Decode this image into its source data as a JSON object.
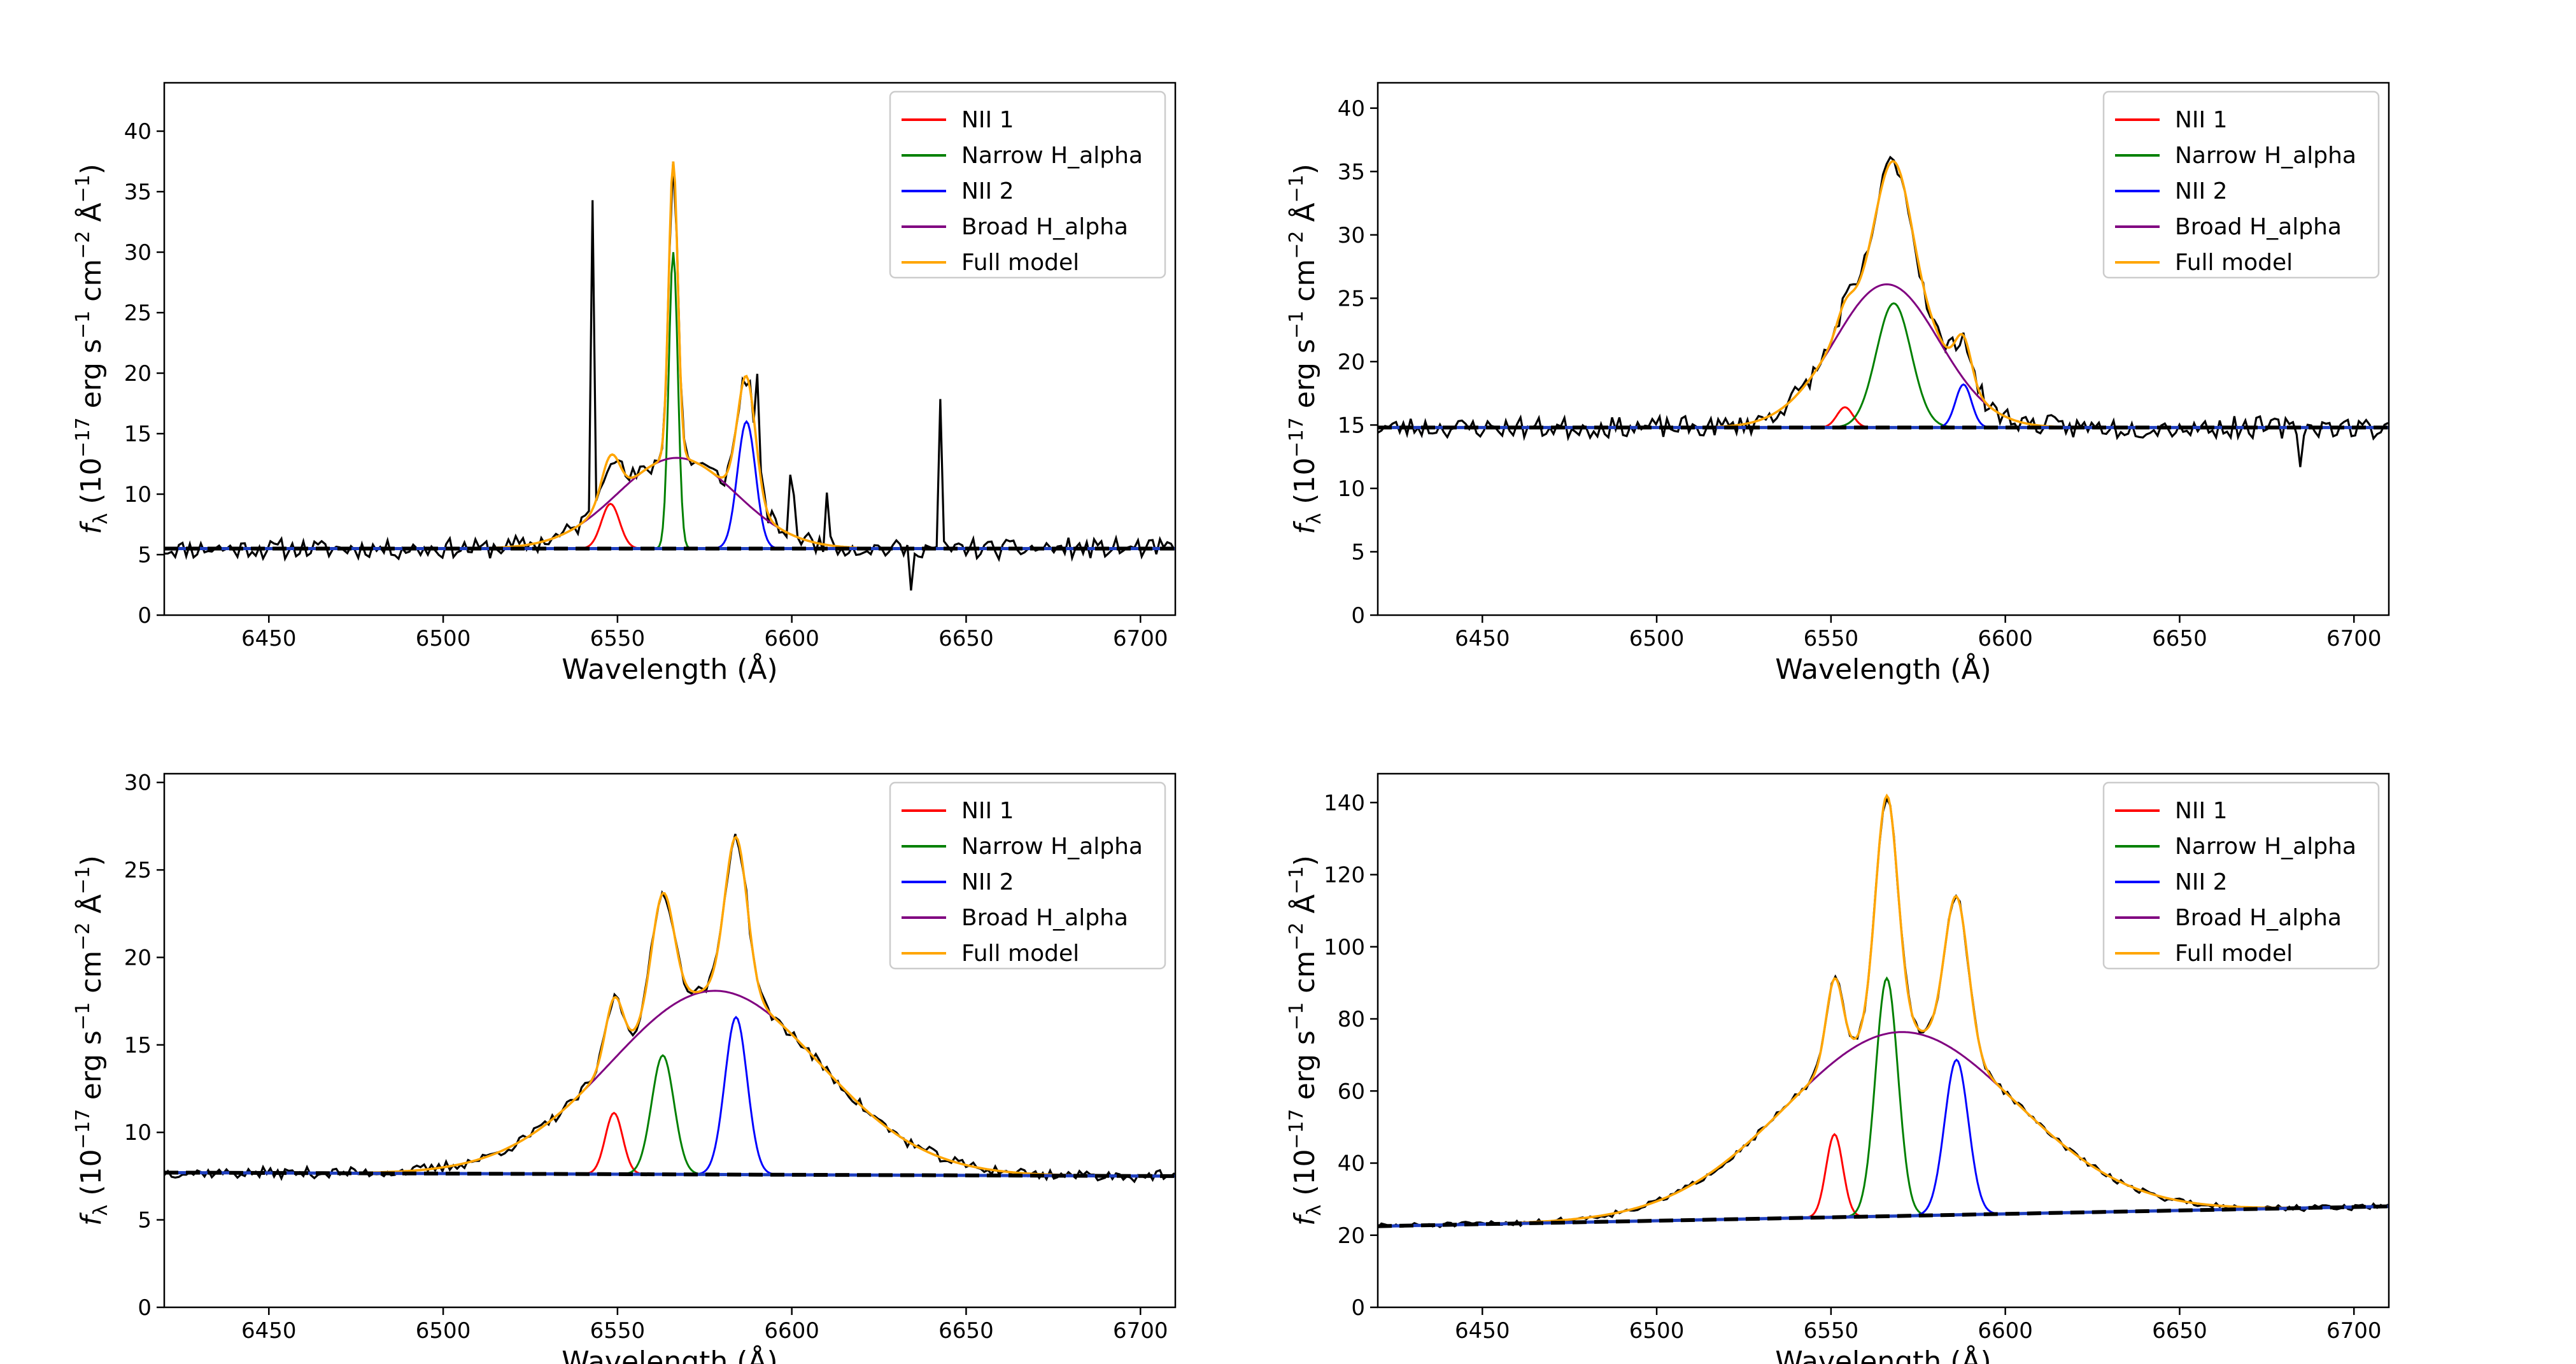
{
  "figure": {
    "layout": "2x2 grid of spectral line fits"
  },
  "legend_entries": [
    {
      "label": "NII 1",
      "color": "#ff0000"
    },
    {
      "label": "Narrow H_alpha",
      "color": "#008000"
    },
    {
      "label": "NII 2",
      "color": "#0000ff"
    },
    {
      "label": "Broad H_alpha",
      "color": "#800080"
    },
    {
      "label": "Full model",
      "color": "#ffa500"
    }
  ],
  "colors": {
    "data": "#000000",
    "continuum": "#000000",
    "continuum_dash": "#1f3fbf"
  },
  "chart_data": [
    {
      "type": "line",
      "panel": "top-left",
      "xlabel": "Wavelength (Å)",
      "ylabel": "f_λ (10^-17 erg s^-1 cm^-2 Å^-1)",
      "xlim": [
        6420,
        6710
      ],
      "ylim": [
        0,
        44
      ],
      "xticks": [
        6450,
        6500,
        6550,
        6600,
        6650,
        6700
      ],
      "yticks": [
        0,
        5,
        10,
        15,
        20,
        25,
        30,
        35,
        40
      ],
      "legend": "top-right",
      "continuum": [
        5.5,
        5.5
      ],
      "noise": 0.8,
      "seed": 11,
      "spikes": [
        [
          6543,
          26
        ],
        [
          6590,
          6
        ],
        [
          6634,
          -4
        ],
        [
          6643,
          12
        ],
        [
          6600,
          4
        ],
        [
          6610,
          5
        ]
      ],
      "components": [
        {
          "name": "NII 1",
          "center": 6548,
          "amplitude": 3.7,
          "sigma": 2.6
        },
        {
          "name": "Narrow H_alpha",
          "center": 6566,
          "amplitude": 24.5,
          "sigma": 1.3
        },
        {
          "name": "NII 2",
          "center": 6587,
          "amplitude": 10.5,
          "sigma": 2.6
        },
        {
          "name": "Broad H_alpha",
          "center": 6567,
          "amplitude": 7.5,
          "sigma": 17
        }
      ]
    },
    {
      "type": "line",
      "panel": "top-right",
      "xlabel": "Wavelength (Å)",
      "ylabel": "f_λ (10^-17 erg s^-1 cm^-2 Å^-1)",
      "xlim": [
        6420,
        6710
      ],
      "ylim": [
        0,
        42
      ],
      "xticks": [
        6450,
        6500,
        6550,
        6600,
        6650,
        6700
      ],
      "yticks": [
        0,
        5,
        10,
        15,
        20,
        25,
        30,
        35,
        40
      ],
      "legend": "top-right",
      "continuum": [
        14.8,
        14.8
      ],
      "noise": 0.8,
      "seed": 23,
      "spikes": [
        [
          6685,
          -3
        ]
      ],
      "components": [
        {
          "name": "NII 1",
          "center": 6554,
          "amplitude": 1.6,
          "sigma": 2.3
        },
        {
          "name": "Narrow H_alpha",
          "center": 6568,
          "amplitude": 9.8,
          "sigma": 5
        },
        {
          "name": "NII 2",
          "center": 6588,
          "amplitude": 3.4,
          "sigma": 2.3
        },
        {
          "name": "Broad H_alpha",
          "center": 6566,
          "amplitude": 11.3,
          "sigma": 15
        }
      ]
    },
    {
      "type": "line",
      "panel": "bottom-left",
      "xlabel": "Wavelength (Å)",
      "ylabel": "f_λ (10^-17 erg s^-1 cm^-2 Å^-1)",
      "xlim": [
        6420,
        6710
      ],
      "ylim": [
        0,
        30.5
      ],
      "xticks": [
        6450,
        6500,
        6550,
        6600,
        6650,
        6700
      ],
      "yticks": [
        0,
        5,
        10,
        15,
        20,
        25,
        30
      ],
      "legend": "top-right",
      "continuum": [
        7.7,
        7.5
      ],
      "noise": 0.3,
      "seed": 37,
      "spikes": [],
      "components": [
        {
          "name": "NII 1",
          "center": 6549,
          "amplitude": 3.5,
          "sigma": 2.5
        },
        {
          "name": "Narrow H_alpha",
          "center": 6563,
          "amplitude": 6.8,
          "sigma": 3.2
        },
        {
          "name": "NII 2",
          "center": 6584,
          "amplitude": 9.0,
          "sigma": 3.2
        },
        {
          "name": "Broad H_alpha",
          "center": 6578,
          "amplitude": 10.5,
          "sigma": 30
        }
      ]
    },
    {
      "type": "line",
      "panel": "bottom-right",
      "xlabel": "Wavelength (Å)",
      "ylabel": "f_λ (10^-17 erg s^-1 cm^-2 Å^-1)",
      "xlim": [
        6420,
        6710
      ],
      "ylim": [
        0,
        148
      ],
      "xticks": [
        6450,
        6500,
        6550,
        6600,
        6650,
        6700
      ],
      "yticks": [
        0,
        20,
        40,
        60,
        80,
        100,
        120,
        140
      ],
      "legend": "top-right",
      "continuum": [
        22.5,
        28
      ],
      "noise": 0.8,
      "seed": 51,
      "spikes": [],
      "components": [
        {
          "name": "NII 1",
          "center": 6551,
          "amplitude": 23,
          "sigma": 2.4
        },
        {
          "name": "Narrow H_alpha",
          "center": 6566,
          "amplitude": 66,
          "sigma": 3.2
        },
        {
          "name": "NII 2",
          "center": 6586,
          "amplitude": 43,
          "sigma": 3.4
        },
        {
          "name": "Broad H_alpha",
          "center": 6570,
          "amplitude": 51,
          "sigma": 33
        }
      ]
    }
  ]
}
